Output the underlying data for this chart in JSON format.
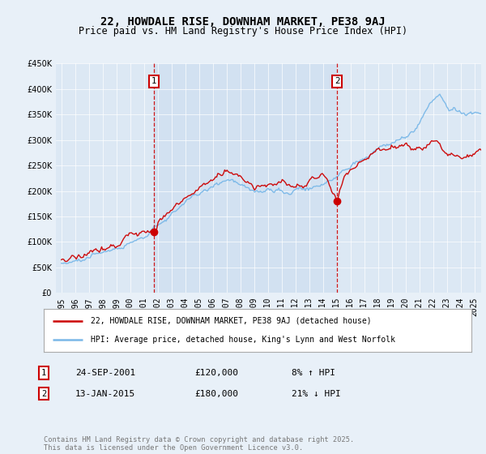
{
  "title": "22, HOWDALE RISE, DOWNHAM MARKET, PE38 9AJ",
  "subtitle": "Price paid vs. HM Land Registry's House Price Index (HPI)",
  "legend_line1": "22, HOWDALE RISE, DOWNHAM MARKET, PE38 9AJ (detached house)",
  "legend_line2": "HPI: Average price, detached house, King's Lynn and West Norfolk",
  "sale1_date": "24-SEP-2001",
  "sale1_price": 120000,
  "sale1_label": "8% ↑ HPI",
  "sale1_x": 2001.73,
  "sale2_date": "13-JAN-2015",
  "sale2_price": 180000,
  "sale2_label": "21% ↓ HPI",
  "sale2_x": 2015.04,
  "footer": "Contains HM Land Registry data © Crown copyright and database right 2025.\nThis data is licensed under the Open Government Licence v3.0.",
  "hpi_color": "#7ab8e8",
  "price_color": "#cc0000",
  "background_color": "#e8f0f8",
  "plot_bg_color": "#dce8f4",
  "highlight_bg_color": "#ccddf0",
  "ylim": [
    0,
    450000
  ],
  "xlim_start": 1994.6,
  "xlim_end": 2025.5
}
